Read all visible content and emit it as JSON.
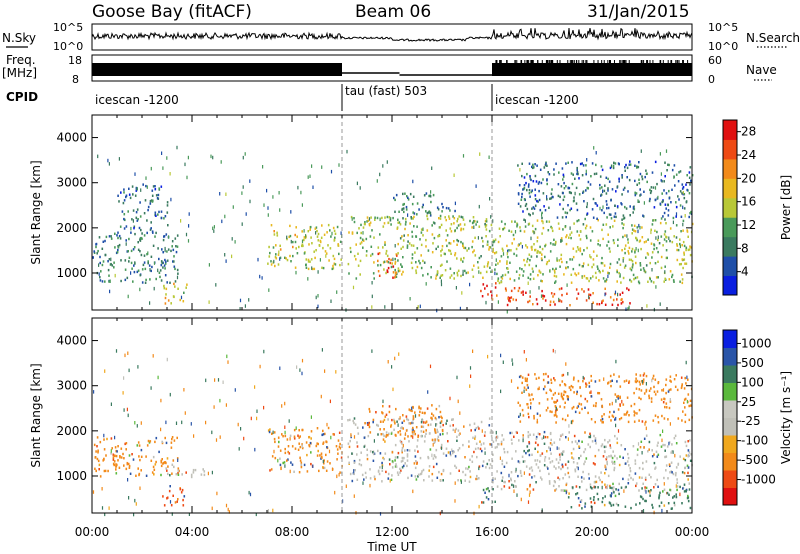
{
  "header": {
    "station": "Goose Bay (fitACF)",
    "beam": "Beam 06",
    "date": "31/Jan/2015"
  },
  "top_panels": {
    "nsky_label": "N.Sky",
    "nsearch_label": "N.Search",
    "nsky_ticks": [
      "10^5",
      "10^0"
    ],
    "nsearch_ticks": [
      "10^5",
      "10^0"
    ],
    "freq_label_1": "Freq.",
    "freq_label_2": "[MHz]",
    "freq_ticks": [
      "18",
      "8"
    ],
    "nave_label": "Nave",
    "nave_ticks": [
      "60",
      "0"
    ],
    "cpid_label": "CPID",
    "cpid_segments": [
      {
        "name": "icescan -1200",
        "start_hour": 0,
        "end_hour": 10
      },
      {
        "name": "tau (fast) 503",
        "start_hour": 10,
        "end_hour": 16
      },
      {
        "name": "icescan -1200",
        "start_hour": 16,
        "end_hour": 24
      }
    ]
  },
  "colors": {
    "power": [
      "#0a1fe0",
      "#1f4fa8",
      "#3a7a5f",
      "#4a9a5a",
      "#b8c837",
      "#e8b820",
      "#f28a1a",
      "#ee4a14",
      "#e01010"
    ],
    "velocity": [
      "#e01010",
      "#ee4a14",
      "#f28a1a",
      "#f0a81e",
      "#c0c0b8",
      "#c8c8c0",
      "#5ab83c",
      "#3a7a5f",
      "#2a55a8",
      "#0a1fe0"
    ]
  },
  "chart_data": [
    {
      "type": "heatmap",
      "name": "power",
      "ylabel": "Slant Range [km]",
      "xlabel": "Time UT",
      "xlim": [
        0,
        24
      ],
      "ylim": [
        180,
        4500
      ],
      "x_ticks": [
        "00:00",
        "04:00",
        "08:00",
        "12:00",
        "16:00",
        "20:00",
        "00:00"
      ],
      "y_ticks": [
        1000,
        2000,
        3000,
        4000
      ],
      "colorbar": {
        "label": "Power [dB]",
        "ticks": [
          4,
          8,
          12,
          16,
          20,
          24,
          28
        ],
        "range": [
          0,
          30
        ]
      },
      "regions": [
        {
          "t0": 0.0,
          "t1": 3.5,
          "r0": 800,
          "r1": 1900,
          "level": 8
        },
        {
          "t0": 1.0,
          "t1": 3.0,
          "r0": 1900,
          "r1": 3000,
          "level": 6
        },
        {
          "t0": 2.8,
          "t1": 3.8,
          "r0": 350,
          "r1": 800,
          "level": 18
        },
        {
          "t0": 7.0,
          "t1": 10.0,
          "r0": 1100,
          "r1": 2100,
          "level": 16
        },
        {
          "t0": 10.2,
          "t1": 16.0,
          "r0": 900,
          "r1": 2300,
          "level": 14
        },
        {
          "t0": 11.4,
          "t1": 12.2,
          "r0": 900,
          "r1": 1500,
          "level": 26
        },
        {
          "t0": 12.0,
          "t1": 14.5,
          "r0": 2300,
          "r1": 2800,
          "level": 8
        },
        {
          "t0": 15.5,
          "t1": 16.2,
          "r0": 350,
          "r1": 800,
          "level": 28
        },
        {
          "t0": 16.0,
          "t1": 24.0,
          "r0": 800,
          "r1": 2200,
          "level": 14
        },
        {
          "t0": 16.5,
          "t1": 21.5,
          "r0": 300,
          "r1": 700,
          "level": 26
        },
        {
          "t0": 17.0,
          "t1": 24.0,
          "r0": 2200,
          "r1": 3500,
          "level": 6
        }
      ]
    },
    {
      "type": "heatmap",
      "name": "velocity",
      "ylabel": "Slant Range [km]",
      "xlabel": "Time UT",
      "xlim": [
        0,
        24
      ],
      "ylim": [
        180,
        4500
      ],
      "x_ticks": [
        "00:00",
        "04:00",
        "08:00",
        "12:00",
        "16:00",
        "20:00",
        "00:00"
      ],
      "y_ticks": [
        1000,
        2000,
        3000,
        4000
      ],
      "colorbar": {
        "label": "Velocity [m s⁻¹]",
        "ticks": [
          "1000",
          "500",
          "100",
          "25",
          "-25",
          "-100",
          "-500",
          "-1000"
        ]
      },
      "regions": [
        {
          "t0": 0.0,
          "t1": 3.5,
          "r0": 1000,
          "r1": 1900,
          "level": -100
        },
        {
          "t0": 2.8,
          "t1": 4.5,
          "r0": 1000,
          "r1": 1300,
          "level": 0
        },
        {
          "t0": 2.8,
          "t1": 3.8,
          "r0": 350,
          "r1": 800,
          "level": -500
        },
        {
          "t0": 7.0,
          "t1": 10.0,
          "r0": 1100,
          "r1": 2100,
          "level": -100
        },
        {
          "t0": 10.2,
          "t1": 16.0,
          "r0": 900,
          "r1": 2300,
          "level": 0
        },
        {
          "t0": 11.0,
          "t1": 14.0,
          "r0": 1800,
          "r1": 2600,
          "level": -200
        },
        {
          "t0": 15.5,
          "t1": 16.2,
          "r0": 400,
          "r1": 800,
          "level": 100
        },
        {
          "t0": 16.0,
          "t1": 24.0,
          "r0": 700,
          "r1": 2000,
          "level": 0
        },
        {
          "t0": 19.0,
          "t1": 24.0,
          "r0": 300,
          "r1": 800,
          "level": 100
        },
        {
          "t0": 17.0,
          "t1": 24.0,
          "r0": 2200,
          "r1": 3300,
          "level": -300
        }
      ]
    }
  ]
}
